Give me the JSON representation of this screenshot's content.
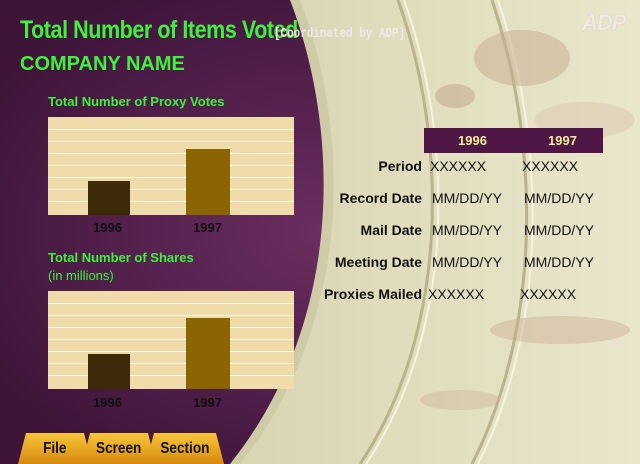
{
  "header": {
    "title": "Total Number of Items Voted",
    "subtitle": "[Coordinated by ADP]",
    "company": "COMPANY NAME",
    "logo_text": "ADP"
  },
  "charts": {
    "proxy_votes": {
      "title": "Total Number of Proxy Votes"
    },
    "shares": {
      "title": "Total Number of Shares",
      "subtitle": "(in millions)"
    }
  },
  "chart_data": [
    {
      "type": "bar",
      "title": "Total Number of Proxy Votes",
      "categories": [
        "1996",
        "1997"
      ],
      "values": [
        35,
        67
      ],
      "ylim": [
        0,
        100
      ],
      "grid": true,
      "colors": [
        "#3d2a08",
        "#8a6400"
      ]
    },
    {
      "type": "bar",
      "title": "Total Number of Shares",
      "subtitle": "(in millions)",
      "categories": [
        "1996",
        "1997"
      ],
      "values": [
        36,
        72
      ],
      "ylim": [
        0,
        100
      ],
      "grid": true,
      "colors": [
        "#3d2a08",
        "#8a6400"
      ]
    }
  ],
  "table": {
    "columns": [
      "1996",
      "1997"
    ],
    "rows": [
      {
        "label": "Period",
        "values": [
          "XXXXXX",
          "XXXXXX"
        ]
      },
      {
        "label": "Record Date",
        "values": [
          "MM/DD/YY",
          "MM/DD/YY"
        ]
      },
      {
        "label": "Mail Date",
        "values": [
          "MM/DD/YY",
          "MM/DD/YY"
        ]
      },
      {
        "label": "Meeting Date",
        "values": [
          "MM/DD/YY",
          "MM/DD/YY"
        ]
      },
      {
        "label": "Proxies Mailed",
        "values": [
          "XXXXXX",
          "XXXXXX"
        ]
      }
    ]
  },
  "nav": {
    "tabs": [
      {
        "label": "File"
      },
      {
        "label": "Screen"
      },
      {
        "label": "Section"
      }
    ]
  },
  "colors": {
    "background": "#4a1c45",
    "accent_green": "#3df23d",
    "panel": "#e7e1c0",
    "chart_bg": "#efdcaa",
    "tab_gold": "#e8a21e"
  }
}
